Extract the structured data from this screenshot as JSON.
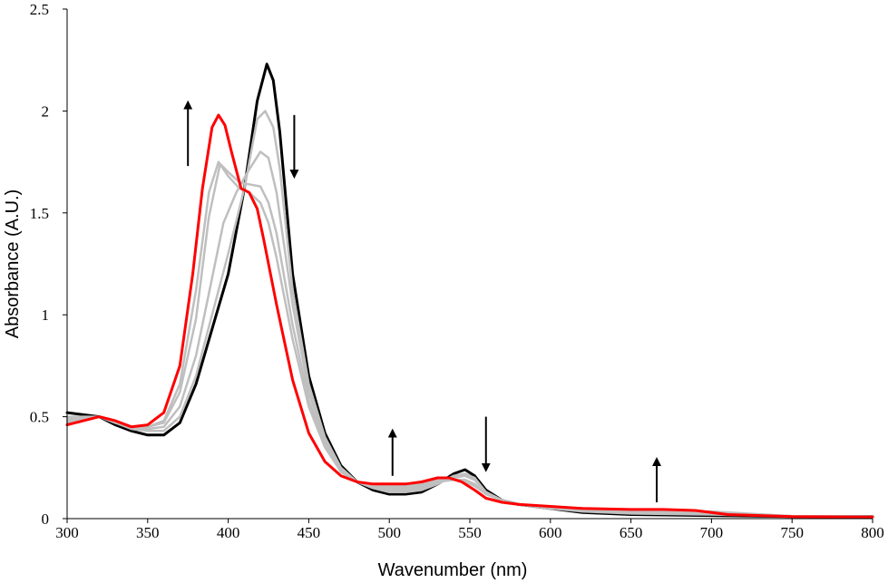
{
  "chart_data": {
    "type": "line",
    "xlabel": "Wavenumber (nm)",
    "ylabel": "Absorbance (A.U.)",
    "xlim": [
      300,
      800
    ],
    "ylim": [
      0,
      2.5
    ],
    "x_ticks": [
      "300",
      "350",
      "400",
      "450",
      "500",
      "550",
      "600",
      "650",
      "700",
      "750",
      "800"
    ],
    "y_ticks": [
      "0",
      "0.5",
      "1",
      "1.5",
      "2",
      "2.5"
    ],
    "grid": false,
    "legend": "none",
    "series": [
      {
        "color": "#000000",
        "points": [
          [
            300,
            0.52
          ],
          [
            310,
            0.51
          ],
          [
            320,
            0.5
          ],
          [
            330,
            0.46
          ],
          [
            340,
            0.43
          ],
          [
            350,
            0.41
          ],
          [
            360,
            0.41
          ],
          [
            370,
            0.47
          ],
          [
            380,
            0.66
          ],
          [
            390,
            0.93
          ],
          [
            400,
            1.2
          ],
          [
            410,
            1.62
          ],
          [
            418,
            2.05
          ],
          [
            424,
            2.23
          ],
          [
            428,
            2.15
          ],
          [
            432,
            1.9
          ],
          [
            440,
            1.2
          ],
          [
            450,
            0.7
          ],
          [
            460,
            0.42
          ],
          [
            470,
            0.26
          ],
          [
            480,
            0.18
          ],
          [
            490,
            0.14
          ],
          [
            500,
            0.12
          ],
          [
            510,
            0.12
          ],
          [
            520,
            0.13
          ],
          [
            530,
            0.17
          ],
          [
            540,
            0.22
          ],
          [
            547,
            0.24
          ],
          [
            553,
            0.21
          ],
          [
            560,
            0.14
          ],
          [
            570,
            0.09
          ],
          [
            580,
            0.07
          ],
          [
            600,
            0.05
          ],
          [
            620,
            0.03
          ],
          [
            650,
            0.02
          ],
          [
            700,
            0.015
          ],
          [
            750,
            0.01
          ],
          [
            800,
            0.01
          ]
        ]
      },
      {
        "color": "#bfbfbf",
        "points": [
          [
            300,
            0.5
          ],
          [
            310,
            0.5
          ],
          [
            320,
            0.5
          ],
          [
            330,
            0.47
          ],
          [
            340,
            0.44
          ],
          [
            350,
            0.43
          ],
          [
            360,
            0.43
          ],
          [
            370,
            0.5
          ],
          [
            380,
            0.7
          ],
          [
            390,
            1.0
          ],
          [
            400,
            1.3
          ],
          [
            410,
            1.62
          ],
          [
            418,
            1.96
          ],
          [
            423,
            2.0
          ],
          [
            428,
            1.92
          ],
          [
            432,
            1.72
          ],
          [
            440,
            1.12
          ],
          [
            450,
            0.66
          ],
          [
            460,
            0.4
          ],
          [
            470,
            0.25
          ],
          [
            480,
            0.18
          ],
          [
            490,
            0.15
          ],
          [
            500,
            0.13
          ],
          [
            510,
            0.13
          ],
          [
            520,
            0.14
          ],
          [
            530,
            0.17
          ],
          [
            540,
            0.21
          ],
          [
            547,
            0.22
          ],
          [
            553,
            0.2
          ],
          [
            560,
            0.13
          ],
          [
            570,
            0.09
          ],
          [
            580,
            0.07
          ],
          [
            600,
            0.05
          ],
          [
            620,
            0.035
          ],
          [
            650,
            0.025
          ],
          [
            700,
            0.02
          ],
          [
            750,
            0.012
          ],
          [
            800,
            0.01
          ]
        ]
      },
      {
        "color": "#bfbfbf",
        "points": [
          [
            300,
            0.49
          ],
          [
            310,
            0.49
          ],
          [
            320,
            0.5
          ],
          [
            330,
            0.47
          ],
          [
            340,
            0.45
          ],
          [
            350,
            0.44
          ],
          [
            360,
            0.45
          ],
          [
            370,
            0.55
          ],
          [
            380,
            0.8
          ],
          [
            390,
            1.18
          ],
          [
            397,
            1.45
          ],
          [
            405,
            1.6
          ],
          [
            412,
            1.7
          ],
          [
            420,
            1.8
          ],
          [
            425,
            1.77
          ],
          [
            430,
            1.6
          ],
          [
            440,
            1.05
          ],
          [
            450,
            0.62
          ],
          [
            460,
            0.38
          ],
          [
            470,
            0.24
          ],
          [
            480,
            0.18
          ],
          [
            490,
            0.15
          ],
          [
            500,
            0.14
          ],
          [
            510,
            0.14
          ],
          [
            520,
            0.15
          ],
          [
            530,
            0.18
          ],
          [
            540,
            0.2
          ],
          [
            547,
            0.21
          ],
          [
            553,
            0.19
          ],
          [
            560,
            0.13
          ],
          [
            570,
            0.09
          ],
          [
            580,
            0.07
          ],
          [
            600,
            0.05
          ],
          [
            620,
            0.04
          ],
          [
            650,
            0.03
          ],
          [
            700,
            0.025
          ],
          [
            750,
            0.012
          ],
          [
            800,
            0.01
          ]
        ]
      },
      {
        "color": "#bfbfbf",
        "points": [
          [
            300,
            0.48
          ],
          [
            310,
            0.49
          ],
          [
            320,
            0.5
          ],
          [
            330,
            0.47
          ],
          [
            340,
            0.45
          ],
          [
            350,
            0.45
          ],
          [
            360,
            0.47
          ],
          [
            370,
            0.62
          ],
          [
            380,
            0.98
          ],
          [
            388,
            1.48
          ],
          [
            395,
            1.74
          ],
          [
            400,
            1.7
          ],
          [
            407,
            1.65
          ],
          [
            413,
            1.64
          ],
          [
            420,
            1.63
          ],
          [
            425,
            1.55
          ],
          [
            430,
            1.4
          ],
          [
            440,
            0.95
          ],
          [
            450,
            0.58
          ],
          [
            460,
            0.36
          ],
          [
            470,
            0.23
          ],
          [
            480,
            0.18
          ],
          [
            490,
            0.16
          ],
          [
            500,
            0.15
          ],
          [
            510,
            0.15
          ],
          [
            520,
            0.16
          ],
          [
            530,
            0.18
          ],
          [
            540,
            0.19
          ],
          [
            547,
            0.19
          ],
          [
            553,
            0.17
          ],
          [
            560,
            0.12
          ],
          [
            570,
            0.09
          ],
          [
            580,
            0.07
          ],
          [
            600,
            0.055
          ],
          [
            620,
            0.045
          ],
          [
            650,
            0.035
          ],
          [
            700,
            0.03
          ],
          [
            750,
            0.012
          ],
          [
            800,
            0.01
          ]
        ]
      },
      {
        "color": "#bfbfbf",
        "points": [
          [
            300,
            0.47
          ],
          [
            310,
            0.48
          ],
          [
            320,
            0.5
          ],
          [
            330,
            0.48
          ],
          [
            340,
            0.45
          ],
          [
            350,
            0.45
          ],
          [
            360,
            0.48
          ],
          [
            370,
            0.66
          ],
          [
            380,
            1.12
          ],
          [
            388,
            1.6
          ],
          [
            394,
            1.75
          ],
          [
            400,
            1.68
          ],
          [
            407,
            1.62
          ],
          [
            413,
            1.6
          ],
          [
            420,
            1.55
          ],
          [
            425,
            1.45
          ],
          [
            430,
            1.28
          ],
          [
            440,
            0.88
          ],
          [
            450,
            0.55
          ],
          [
            460,
            0.35
          ],
          [
            470,
            0.23
          ],
          [
            480,
            0.18
          ],
          [
            490,
            0.16
          ],
          [
            500,
            0.16
          ],
          [
            510,
            0.16
          ],
          [
            520,
            0.17
          ],
          [
            530,
            0.19
          ],
          [
            540,
            0.19
          ],
          [
            547,
            0.18
          ],
          [
            553,
            0.16
          ],
          [
            560,
            0.12
          ],
          [
            570,
            0.09
          ],
          [
            580,
            0.07
          ],
          [
            600,
            0.055
          ],
          [
            620,
            0.05
          ],
          [
            650,
            0.04
          ],
          [
            700,
            0.035
          ],
          [
            750,
            0.012
          ],
          [
            800,
            0.01
          ]
        ]
      },
      {
        "color": "#ff0000",
        "points": [
          [
            300,
            0.46
          ],
          [
            310,
            0.48
          ],
          [
            320,
            0.5
          ],
          [
            330,
            0.48
          ],
          [
            340,
            0.45
          ],
          [
            350,
            0.46
          ],
          [
            360,
            0.52
          ],
          [
            370,
            0.75
          ],
          [
            378,
            1.2
          ],
          [
            384,
            1.62
          ],
          [
            390,
            1.92
          ],
          [
            394,
            1.98
          ],
          [
            398,
            1.93
          ],
          [
            402,
            1.8
          ],
          [
            408,
            1.62
          ],
          [
            413,
            1.6
          ],
          [
            418,
            1.52
          ],
          [
            422,
            1.37
          ],
          [
            430,
            1.05
          ],
          [
            440,
            0.68
          ],
          [
            450,
            0.42
          ],
          [
            460,
            0.28
          ],
          [
            470,
            0.21
          ],
          [
            480,
            0.18
          ],
          [
            490,
            0.17
          ],
          [
            500,
            0.17
          ],
          [
            510,
            0.17
          ],
          [
            520,
            0.18
          ],
          [
            530,
            0.2
          ],
          [
            537,
            0.2
          ],
          [
            545,
            0.18
          ],
          [
            553,
            0.14
          ],
          [
            560,
            0.1
          ],
          [
            570,
            0.08
          ],
          [
            580,
            0.07
          ],
          [
            600,
            0.06
          ],
          [
            620,
            0.05
          ],
          [
            650,
            0.045
          ],
          [
            670,
            0.045
          ],
          [
            690,
            0.04
          ],
          [
            710,
            0.02
          ],
          [
            750,
            0.01
          ],
          [
            800,
            0.008
          ]
        ]
      }
    ],
    "arrows": [
      {
        "x": 375,
        "y_from": 1.73,
        "y_to": 2.03,
        "direction": "up"
      },
      {
        "x": 441,
        "y_from": 1.98,
        "y_to": 1.69,
        "direction": "down"
      },
      {
        "x": 502,
        "y_from": 0.21,
        "y_to": 0.42,
        "direction": "up"
      },
      {
        "x": 560,
        "y_from": 0.5,
        "y_to": 0.25,
        "direction": "down"
      },
      {
        "x": 666,
        "y_from": 0.08,
        "y_to": 0.28,
        "direction": "up"
      }
    ]
  }
}
